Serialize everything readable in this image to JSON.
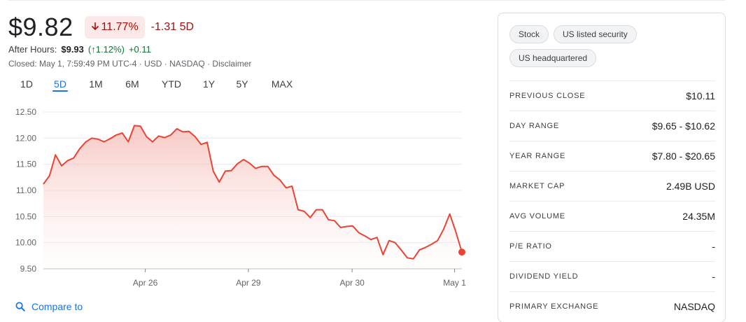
{
  "quote": {
    "price": "$9.82",
    "change_pct": "11.77%",
    "change_abs": "-1.31 5D",
    "after_hours_label": "After Hours:",
    "after_hours_price": "$9.93",
    "after_hours_pct": "(↑1.12%)",
    "after_hours_abs": "+0.11",
    "closed_text": "Closed: May 1, 7:59:49 PM UTC-4 · USD · NASDAQ · Disclaimer",
    "colors": {
      "down": "#a50e0e",
      "up": "#137333",
      "line": "#ea4335",
      "accent": "#1a73e8"
    }
  },
  "range_tabs": [
    {
      "label": "1D"
    },
    {
      "label": "5D",
      "active": true
    },
    {
      "label": "1M"
    },
    {
      "label": "6M"
    },
    {
      "label": "YTD"
    },
    {
      "label": "1Y"
    },
    {
      "label": "5Y"
    },
    {
      "label": "MAX"
    }
  ],
  "compare": {
    "label": "Compare to",
    "icon": "search-icon"
  },
  "chips": [
    "Stock",
    "US listed security",
    "US headquartered"
  ],
  "stats": [
    {
      "label": "PREVIOUS CLOSE",
      "value": "$10.11"
    },
    {
      "label": "DAY RANGE",
      "value": "$9.65 - $10.62"
    },
    {
      "label": "YEAR RANGE",
      "value": "$7.80 - $20.65"
    },
    {
      "label": "MARKET CAP",
      "value": "2.49B USD"
    },
    {
      "label": "AVG VOLUME",
      "value": "24.35M"
    },
    {
      "label": "P/E RATIO",
      "value": "-"
    },
    {
      "label": "DIVIDEND YIELD",
      "value": "-"
    },
    {
      "label": "PRIMARY EXCHANGE",
      "value": "NASDAQ"
    }
  ],
  "chart_data": {
    "type": "area",
    "ylim": [
      9.5,
      12.5
    ],
    "y_ticks": [
      9.5,
      10.0,
      10.5,
      11.0,
      11.5,
      12.0,
      12.5
    ],
    "y_tick_labels": [
      "9.50",
      "10.00",
      "10.50",
      "11.00",
      "11.50",
      "12.00",
      "12.50"
    ],
    "x_tick_labels": [
      "Apr 26",
      "Apr 29",
      "Apr 30",
      "May 1"
    ],
    "x_tick_index": [
      16.8,
      33.8,
      50.9,
      67.8
    ],
    "grid": true,
    "series": [
      {
        "values": [
          11.12,
          11.28,
          11.68,
          11.47,
          11.57,
          11.62,
          11.8,
          11.93,
          12.0,
          11.98,
          11.93,
          11.99,
          12.06,
          12.1,
          11.93,
          12.24,
          12.23,
          12.03,
          11.93,
          12.04,
          12.01,
          12.06,
          12.18,
          12.12,
          12.13,
          12.03,
          11.88,
          11.92,
          11.37,
          11.16,
          11.37,
          11.38,
          11.51,
          11.59,
          11.52,
          11.42,
          11.46,
          11.46,
          11.29,
          11.2,
          11.05,
          11.08,
          10.63,
          10.6,
          10.48,
          10.63,
          10.63,
          10.44,
          10.42,
          10.29,
          10.31,
          10.32,
          10.19,
          10.13,
          10.06,
          10.1,
          9.77,
          10.04,
          10.0,
          9.86,
          9.71,
          9.69,
          9.86,
          9.91,
          9.97,
          10.04,
          10.26,
          10.55,
          10.21,
          9.82
        ]
      }
    ]
  }
}
